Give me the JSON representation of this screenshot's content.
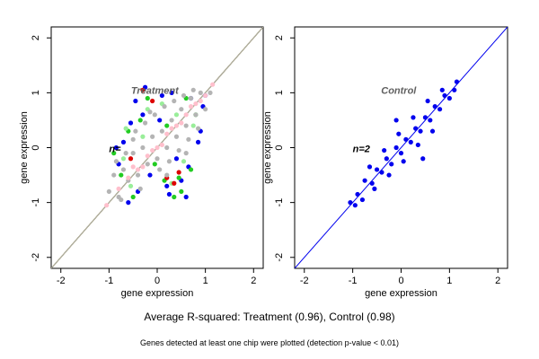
{
  "chart_data": [
    {
      "type": "scatter",
      "title": "",
      "panel_label": "Treatment",
      "annotation": "n=",
      "xlabel": "gene expression",
      "ylabel": "gene expression",
      "xlim": [
        -2.2,
        2.2
      ],
      "ylim": [
        -2.2,
        2.2
      ],
      "xticks": [
        -2,
        -1,
        0,
        1,
        2
      ],
      "yticks": [
        -2,
        -1,
        0,
        1,
        2
      ],
      "grid": false,
      "reference_lines": [
        {
          "color": "#ff4444",
          "slope": 1,
          "intercept": 0
        },
        {
          "color": "#22aa22",
          "slope": 1,
          "intercept": 0
        },
        {
          "color": "#3355ff",
          "slope": 1,
          "intercept": 0
        },
        {
          "color": "#ffd700",
          "slope": 1,
          "intercept": 0
        },
        {
          "color": "#aaaaaa",
          "slope": 1,
          "intercept": 0
        }
      ],
      "series": [
        {
          "color": "#0000ee",
          "values": [
            [
              -0.25,
              1.1
            ],
            [
              0.9,
              0.3
            ],
            [
              -0.7,
              0.1
            ],
            [
              0.6,
              -0.9
            ],
            [
              -0.3,
              0.6
            ],
            [
              0.4,
              -0.2
            ],
            [
              0.95,
              0.75
            ],
            [
              -0.4,
              -0.8
            ],
            [
              0.2,
              -0.7
            ],
            [
              -0.55,
              0.45
            ],
            [
              0.7,
              0.9
            ],
            [
              0.1,
              0.95
            ],
            [
              -0.8,
              -0.3
            ],
            [
              0.5,
              -0.6
            ],
            [
              0.3,
              1.0
            ],
            [
              -0.15,
              -0.5
            ],
            [
              0.85,
              0.1
            ],
            [
              -0.6,
              -1.0
            ],
            [
              0.05,
              0.5
            ],
            [
              0.65,
              -0.35
            ],
            [
              1.0,
              0.95
            ],
            [
              -0.45,
              0.85
            ],
            [
              0.25,
              -0.85
            ],
            [
              -0.85,
              0.0
            ]
          ]
        },
        {
          "color": "#22cc22",
          "values": [
            [
              -0.9,
              -0.1
            ],
            [
              0.5,
              -0.8
            ],
            [
              -0.6,
              0.3
            ],
            [
              0.45,
              -0.55
            ],
            [
              -0.5,
              -0.9
            ],
            [
              0.15,
              -0.6
            ],
            [
              -0.35,
              0.5
            ],
            [
              0.7,
              -0.4
            ],
            [
              0.6,
              0.9
            ],
            [
              -0.2,
              0.9
            ],
            [
              0.35,
              -0.9
            ],
            [
              -0.75,
              -0.5
            ],
            [
              0.2,
              0.4
            ],
            [
              -0.05,
              -0.3
            ],
            [
              0.8,
              0.6
            ]
          ]
        },
        {
          "color": "#99ee99",
          "values": [
            [
              -0.7,
              -0.2
            ],
            [
              0.3,
              -0.65
            ],
            [
              -0.2,
              0.7
            ],
            [
              0.4,
              0.6
            ],
            [
              -0.55,
              -0.7
            ],
            [
              0.55,
              -0.25
            ],
            [
              -0.3,
              0.2
            ],
            [
              0.1,
              0.8
            ],
            [
              0.75,
              0.4
            ],
            [
              -0.65,
              0.35
            ]
          ]
        },
        {
          "color": "#dd0000",
          "values": [
            [
              -0.3,
              1.05
            ],
            [
              0.35,
              -0.65
            ],
            [
              0.2,
              -0.55
            ],
            [
              -0.1,
              0.85
            ],
            [
              0.45,
              -0.45
            ],
            [
              -0.55,
              -0.2
            ]
          ]
        },
        {
          "color": "#b4b4b4",
          "values": [
            [
              -1.0,
              -0.8
            ],
            [
              -0.9,
              -0.5
            ],
            [
              -0.8,
              -0.9
            ],
            [
              -0.7,
              -0.4
            ],
            [
              -0.6,
              -0.6
            ],
            [
              -0.5,
              -0.1
            ],
            [
              -0.4,
              -0.5
            ],
            [
              -0.3,
              0.0
            ],
            [
              -0.2,
              -0.3
            ],
            [
              -0.1,
              0.2
            ],
            [
              0.0,
              -0.2
            ],
            [
              0.1,
              0.3
            ],
            [
              0.2,
              0.0
            ],
            [
              0.3,
              0.5
            ],
            [
              0.4,
              0.2
            ],
            [
              0.5,
              0.7
            ],
            [
              0.6,
              0.4
            ],
            [
              0.7,
              0.9
            ],
            [
              0.8,
              0.6
            ],
            [
              0.9,
              1.0
            ],
            [
              -0.65,
              -0.1
            ],
            [
              -0.45,
              0.3
            ],
            [
              -0.25,
              0.45
            ],
            [
              -0.05,
              0.6
            ],
            [
              0.15,
              0.75
            ],
            [
              0.35,
              0.85
            ],
            [
              0.55,
              0.95
            ],
            [
              -0.75,
              -0.95
            ],
            [
              -0.35,
              -0.75
            ],
            [
              0.05,
              -0.4
            ],
            [
              0.25,
              -0.25
            ],
            [
              0.45,
              -0.05
            ],
            [
              0.65,
              0.15
            ],
            [
              0.85,
              0.35
            ],
            [
              1.0,
              0.7
            ],
            [
              -0.85,
              -0.25
            ],
            [
              -0.15,
              0.65
            ],
            [
              0.2,
              -0.5
            ],
            [
              0.6,
              -0.1
            ],
            [
              -0.5,
              0.15
            ],
            [
              0.75,
              1.05
            ],
            [
              1.1,
              1.0
            ]
          ]
        },
        {
          "color": "#ffbfcc",
          "values": [
            [
              -1.05,
              -1.05
            ],
            [
              -0.8,
              -0.75
            ],
            [
              -0.6,
              -0.55
            ],
            [
              -0.4,
              -0.4
            ],
            [
              -0.2,
              -0.15
            ],
            [
              0.0,
              0.0
            ],
            [
              0.2,
              0.25
            ],
            [
              0.4,
              0.4
            ],
            [
              0.6,
              0.6
            ],
            [
              0.8,
              0.8
            ],
            [
              1.0,
              0.95
            ],
            [
              1.15,
              1.15
            ],
            [
              -0.5,
              -0.35
            ],
            [
              -0.3,
              -0.35
            ],
            [
              -0.1,
              -0.05
            ],
            [
              0.1,
              0.05
            ],
            [
              0.3,
              0.35
            ],
            [
              0.5,
              0.45
            ],
            [
              0.7,
              0.75
            ],
            [
              0.9,
              0.85
            ]
          ]
        }
      ]
    },
    {
      "type": "scatter",
      "title": "",
      "panel_label": "Control",
      "annotation": "n=2",
      "xlabel": "gene expression",
      "ylabel": "gene expression",
      "xlim": [
        -2.2,
        2.2
      ],
      "ylim": [
        -2.2,
        2.2
      ],
      "xticks": [
        -2,
        -1,
        0,
        1,
        2
      ],
      "yticks": [
        -2,
        -1,
        0,
        1,
        2
      ],
      "grid": false,
      "reference_lines": [
        {
          "color": "#0000ee",
          "slope": 1,
          "intercept": 0
        }
      ],
      "series": [
        {
          "color": "#0000ee",
          "values": [
            [
              -1.05,
              -1.0
            ],
            [
              -0.9,
              -0.85
            ],
            [
              -0.75,
              -0.6
            ],
            [
              -0.6,
              -0.65
            ],
            [
              -0.5,
              -0.4
            ],
            [
              -0.4,
              -0.45
            ],
            [
              -0.3,
              -0.2
            ],
            [
              -0.2,
              -0.3
            ],
            [
              -0.1,
              0.0
            ],
            [
              0.0,
              -0.1
            ],
            [
              0.1,
              0.15
            ],
            [
              0.2,
              0.1
            ],
            [
              0.3,
              0.35
            ],
            [
              0.4,
              0.3
            ],
            [
              0.5,
              0.55
            ],
            [
              0.6,
              0.5
            ],
            [
              0.7,
              0.75
            ],
            [
              0.8,
              0.7
            ],
            [
              0.9,
              0.95
            ],
            [
              1.0,
              0.9
            ],
            [
              1.15,
              1.2
            ],
            [
              -0.8,
              -0.95
            ],
            [
              -0.55,
              -0.75
            ],
            [
              -0.25,
              -0.5
            ],
            [
              0.05,
              -0.25
            ],
            [
              0.35,
              0.05
            ],
            [
              0.65,
              0.3
            ],
            [
              -0.65,
              -0.35
            ],
            [
              -0.35,
              -0.05
            ],
            [
              -0.05,
              0.25
            ],
            [
              0.25,
              0.55
            ],
            [
              0.55,
              0.85
            ],
            [
              0.85,
              1.05
            ],
            [
              -0.1,
              0.5
            ],
            [
              0.45,
              -0.2
            ],
            [
              1.1,
              1.05
            ],
            [
              -0.95,
              -1.05
            ]
          ]
        }
      ]
    }
  ],
  "captions": {
    "summary": "Average R-squared: Treatment (0.96), Control (0.98)",
    "note": "Genes detected at least one chip were plotted (detection p-value < 0.01)"
  }
}
